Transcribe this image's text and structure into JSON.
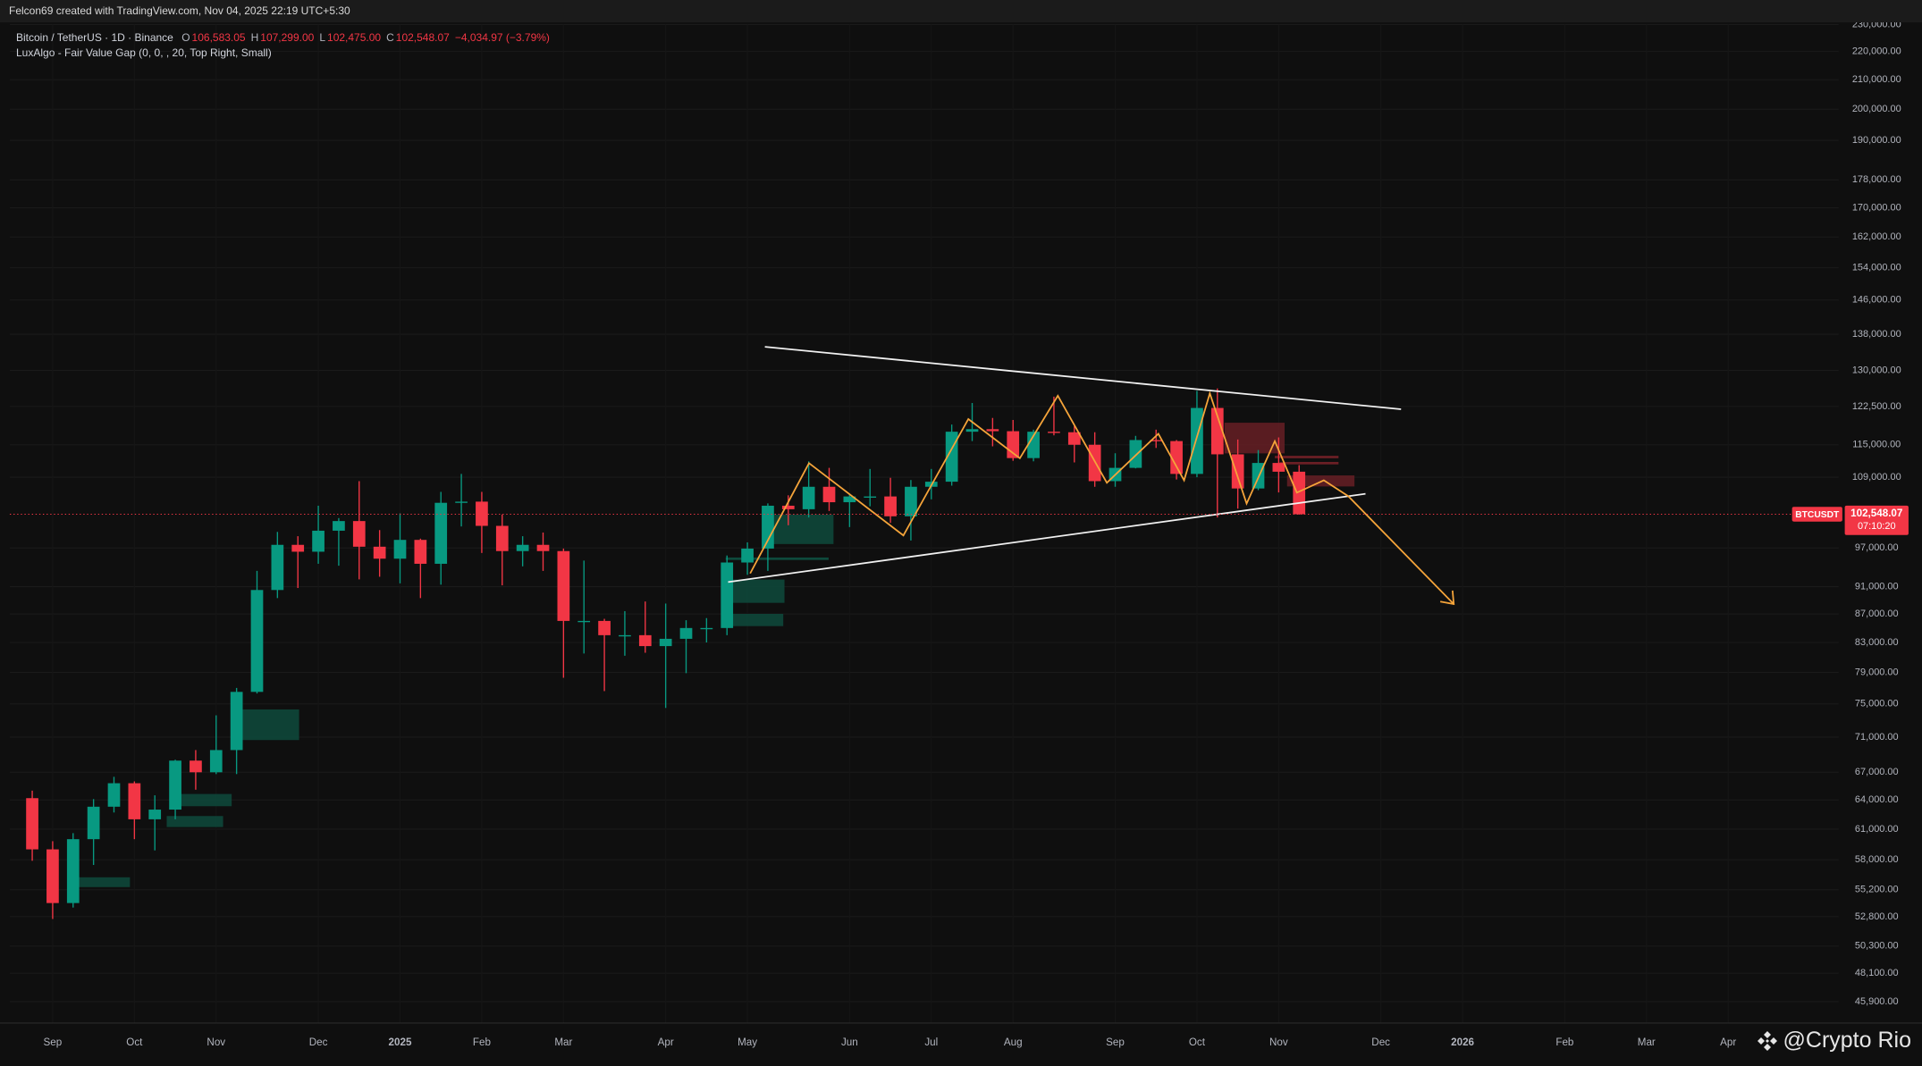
{
  "top_bar": "Felcon69 created with TradingView.com, Nov 04, 2025 22:19 UTC+5:30",
  "legend": {
    "symbol": "Bitcoin / TetherUS · 1D · Binance",
    "ohlc": [
      {
        "key": "O",
        "value": "106,583.05"
      },
      {
        "key": "H",
        "value": "107,299.00"
      },
      {
        "key": "L",
        "value": "102,475.00"
      },
      {
        "key": "C",
        "value": "102,548.07"
      }
    ],
    "change": "−4,034.97 (−3.79%)",
    "indicator": "LuxAlgo - Fair Value Gap (0, 0, , 20, Top Right, Small)"
  },
  "watermark": "@Crypto Rio",
  "chart_data": {
    "type": "candlestick",
    "log_scale": true,
    "grid": true,
    "up_color": "#089981",
    "down_color": "#f23645",
    "last_price_label": "102,548.07",
    "countdown": "07:10:20",
    "categories": [
      null,
      "Sep",
      null,
      null,
      null,
      "Oct",
      null,
      null,
      null,
      "Nov",
      null,
      null,
      null,
      null,
      "Dec",
      null,
      null,
      null,
      "2025",
      null,
      null,
      null,
      "Feb",
      null,
      null,
      null,
      "Mar",
      null,
      null,
      null,
      null,
      "Apr",
      null,
      null,
      null,
      "May",
      null,
      null,
      null,
      null,
      "Jun",
      null,
      null,
      null,
      "Jul",
      null,
      null,
      null,
      "Aug",
      null,
      null,
      null,
      null,
      "Sep",
      null,
      null,
      null,
      "Oct",
      null,
      null,
      null,
      "Nov",
      null,
      null,
      null,
      null,
      "Dec",
      null,
      null,
      null,
      "2026",
      null,
      null,
      null,
      null,
      "Feb",
      null,
      null,
      null,
      "Mar",
      null,
      null,
      null,
      "Apr",
      null,
      null,
      null,
      null,
      null
    ],
    "series": [
      {
        "name": "BTCUSDT",
        "open": [
          64200,
          59000,
          54000,
          60000,
          63300,
          65800,
          62000,
          63000,
          68300,
          67000,
          69500,
          76500,
          90500,
          97500,
          96400,
          99800,
          101400,
          97200,
          95300,
          98300,
          94500,
          104500,
          104700,
          100600,
          96500,
          97500,
          96500,
          86000,
          86000,
          84000,
          84000,
          82500,
          83500,
          85000,
          85000,
          94700,
          96900,
          104000,
          103400,
          107300,
          104600,
          105600,
          105600,
          102200,
          107300,
          108200,
          117500,
          118000,
          117600,
          112500,
          117500,
          117400,
          115000,
          108300,
          110700,
          115900,
          115700,
          109600,
          122200,
          113200,
          107000,
          111600,
          110000,
          null,
          null,
          null,
          null,
          null,
          null,
          null,
          null,
          null,
          null,
          null,
          null,
          null,
          null,
          null,
          null,
          null,
          null,
          null,
          null,
          null,
          null,
          null,
          null,
          null,
          null
        ],
        "high": [
          65000,
          59800,
          60600,
          64100,
          66500,
          66000,
          64500,
          68400,
          69500,
          73600,
          77000,
          93400,
          99600,
          98900,
          104000,
          101900,
          108300,
          99900,
          102700,
          98500,
          106400,
          109600,
          106400,
          102500,
          98900,
          99500,
          96900,
          95000,
          86300,
          87400,
          88800,
          88500,
          86100,
          86400,
          95800,
          97900,
          104400,
          105800,
          111900,
          110700,
          106000,
          110500,
          108900,
          108500,
          110500,
          118900,
          123200,
          120200,
          119800,
          117900,
          124500,
          118600,
          117400,
          113400,
          116700,
          117900,
          115900,
          125700,
          126200,
          116000,
          114000,
          116400,
          111200,
          null,
          null,
          null,
          null,
          null,
          null,
          null,
          null,
          null,
          null,
          null,
          null,
          null,
          null,
          null,
          null,
          null,
          null,
          null,
          null,
          null,
          null,
          null,
          null,
          null,
          null
        ],
        "low": [
          57900,
          52600,
          53600,
          57500,
          62700,
          60000,
          58900,
          62000,
          65100,
          66800,
          66800,
          76300,
          89300,
          90800,
          94500,
          94200,
          92100,
          92500,
          91500,
          89300,
          91300,
          100500,
          96200,
          91200,
          94100,
          93400,
          78300,
          81500,
          76600,
          81200,
          81600,
          74500,
          78900,
          83000,
          84000,
          92800,
          93400,
          100700,
          102000,
          103100,
          100400,
          103900,
          101100,
          98200,
          105100,
          107500,
          115700,
          114700,
          112000,
          111900,
          116800,
          111700,
          107300,
          107300,
          110600,
          114400,
          108600,
          109000,
          102000,
          103500,
          106700,
          106300,
          102475,
          null,
          null,
          null,
          null,
          null,
          null,
          null,
          null,
          null,
          null,
          null,
          null,
          null,
          null,
          null,
          null,
          null,
          null,
          null,
          null,
          null,
          null,
          null,
          null,
          null,
          null
        ],
        "close": [
          59000,
          54000,
          60000,
          63300,
          65800,
          62000,
          63000,
          68300,
          67000,
          69500,
          76500,
          90500,
          97500,
          96400,
          99800,
          101400,
          97200,
          95300,
          98300,
          94500,
          104500,
          104700,
          100600,
          96500,
          97500,
          96500,
          86000,
          86000,
          84000,
          84000,
          82500,
          83500,
          85000,
          85000,
          94700,
          96900,
          104000,
          103400,
          107300,
          104600,
          105600,
          105600,
          102200,
          107300,
          108200,
          117500,
          118000,
          117600,
          112500,
          117500,
          117400,
          115000,
          108300,
          110700,
          115900,
          115700,
          109600,
          122200,
          113200,
          107000,
          111600,
          110000,
          102548.07,
          null,
          null,
          null,
          null,
          null,
          null,
          null,
          null,
          null,
          null,
          null,
          null,
          null,
          null,
          null,
          null,
          null,
          null,
          null,
          null,
          null,
          null,
          null,
          null,
          null,
          null
        ]
      }
    ],
    "ylim": [
      44300,
      230000
    ],
    "yticks": [
      {
        "value": 230000,
        "label": "230,000.00"
      },
      {
        "value": 220000,
        "label": "220,000.00"
      },
      {
        "value": 210000,
        "label": "210,000.00"
      },
      {
        "value": 200000,
        "label": "200,000.00"
      },
      {
        "value": 190000,
        "label": "190,000.00"
      },
      {
        "value": 178000,
        "label": "178,000.00"
      },
      {
        "value": 170000,
        "label": "170,000.00"
      },
      {
        "value": 162000,
        "label": "162,000.00"
      },
      {
        "value": 154000,
        "label": "154,000.00"
      },
      {
        "value": 146000,
        "label": "146,000.00"
      },
      {
        "value": 138000,
        "label": "138,000.00"
      },
      {
        "value": 130000,
        "label": "130,000.00"
      },
      {
        "value": 122500,
        "label": "122,500.00"
      },
      {
        "value": 115000,
        "label": "115,000.00"
      },
      {
        "value": 109000,
        "label": "109,000.00"
      },
      {
        "value": 97000,
        "label": "97,000.00"
      },
      {
        "value": 91000,
        "label": "91,000.00"
      },
      {
        "value": 87000,
        "label": "87,000.00"
      },
      {
        "value": 83000,
        "label": "83,000.00"
      },
      {
        "value": 79000,
        "label": "79,000.00"
      },
      {
        "value": 75000,
        "label": "75,000.00"
      },
      {
        "value": 71000,
        "label": "71,000.00"
      },
      {
        "value": 67000,
        "label": "67,000.00"
      },
      {
        "value": 64000,
        "label": "64,000.00"
      },
      {
        "value": 61000,
        "label": "61,000.00"
      },
      {
        "value": 58000,
        "label": "58,000.00"
      },
      {
        "value": 55200,
        "label": "55,200.00"
      },
      {
        "value": 52800,
        "label": "52,800.00"
      },
      {
        "value": 50300,
        "label": "50,300.00"
      },
      {
        "value": 48100,
        "label": "48,100.00"
      },
      {
        "value": 45900,
        "label": "45,900.00"
      }
    ]
  }
}
